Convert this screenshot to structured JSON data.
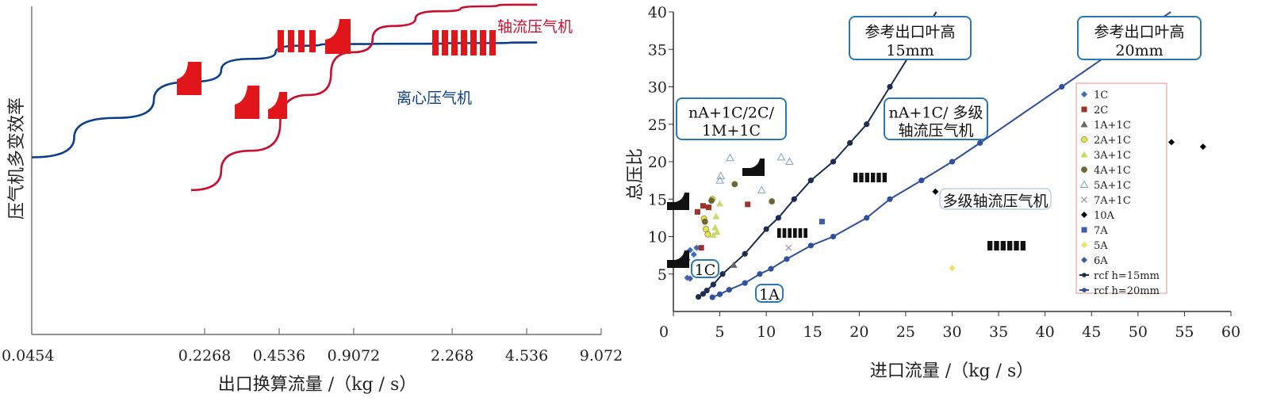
{
  "chart_data": [
    {
      "type": "line",
      "title": "",
      "xlabel": "出口换算流量 /（kg / s）",
      "ylabel": "压气机多变效率",
      "x_scale": "log",
      "x_ticks": [
        "0.0454",
        "0.2268",
        "0.4536",
        "0.9072",
        "2.268",
        "4.536",
        "9.072"
      ],
      "xlim": [
        0.0454,
        9.072
      ],
      "series": [
        {
          "name": "离心压气机",
          "color": "#0b3f8c",
          "x": [
            0.0454,
            0.1,
            0.2,
            0.35,
            0.55,
            0.8,
            1.5,
            3.0,
            5.0
          ],
          "y": [
            0.54,
            0.66,
            0.77,
            0.84,
            0.88,
            0.885,
            0.886,
            0.888,
            0.89
          ]
        },
        {
          "name": "轴流压气机",
          "color": "#c8102e",
          "x": [
            0.2,
            0.35,
            0.6,
            0.9,
            1.3,
            2.0,
            3.0,
            4.0,
            5.0
          ],
          "y": [
            0.44,
            0.56,
            0.73,
            0.86,
            0.94,
            0.985,
            1.0,
            1.005,
            1.005
          ]
        }
      ],
      "annotations": [
        "轴流压气机",
        "离心压气机"
      ]
    },
    {
      "type": "scatter",
      "title": "",
      "xlabel": "进口流量 /（kg / s）",
      "ylabel": "总压比",
      "xlim": [
        0,
        60
      ],
      "ylim": [
        0,
        40
      ],
      "x_ticks": [
        0,
        5,
        10,
        15,
        20,
        25,
        30,
        35,
        40,
        45,
        50,
        55,
        60
      ],
      "y_ticks": [
        5,
        10,
        15,
        20,
        25,
        30,
        35,
        40
      ],
      "series": [
        {
          "name": "1C",
          "marker": "diamond",
          "color": "#3a6bbf",
          "points": [
            [
              1.5,
              6.9
            ],
            [
              1.8,
              8.2
            ],
            [
              2.2,
              7.6
            ],
            [
              1.5,
              4.5
            ],
            [
              2.5,
              8.5
            ]
          ]
        },
        {
          "name": "2C",
          "marker": "square",
          "color": "#a0302a",
          "points": [
            [
              2.6,
              13.3
            ],
            [
              3.2,
              14.1
            ],
            [
              3.8,
              13.9
            ],
            [
              3.0,
              8.5
            ],
            [
              8.0,
              14.3
            ]
          ]
        },
        {
          "name": "1A+1C",
          "marker": "triangle",
          "color": "#666666",
          "points": [
            [
              4.5,
              6.0
            ],
            [
              6.5,
              6.2
            ]
          ]
        },
        {
          "name": "2A+1C",
          "marker": "circle",
          "color": "#e8e34a",
          "points": [
            [
              4.2,
              15.0
            ],
            [
              3.5,
              11.0
            ],
            [
              3.3,
              12.4
            ],
            [
              3.7,
              10.3
            ]
          ]
        },
        {
          "name": "3A+1C",
          "marker": "triangle",
          "color": "#c8d86a",
          "points": [
            [
              5.0,
              14.4
            ],
            [
              4.6,
              12.7
            ],
            [
              4.5,
              11.2
            ],
            [
              4.7,
              10.6
            ],
            [
              4.3,
              10.2
            ]
          ]
        },
        {
          "name": "4A+1C",
          "marker": "circle",
          "color": "#6e6633",
          "points": [
            [
              6.6,
              17.0
            ],
            [
              3.4,
              12.0
            ],
            [
              4.1,
              14.8
            ],
            [
              10.6,
              14.7
            ]
          ]
        },
        {
          "name": "5A+1C",
          "marker": "triangle-open",
          "color": "#7fa3cf",
          "points": [
            [
              5.0,
              17.5
            ],
            [
              5.1,
              18.1
            ],
            [
              6.1,
              20.5
            ],
            [
              11.6,
              20.6
            ],
            [
              12.5,
              20.0
            ],
            [
              9.5,
              16.2
            ]
          ]
        },
        {
          "name": "7A+1C",
          "marker": "x",
          "color": "#b08da5",
          "points": [
            [
              12.4,
              8.5
            ]
          ]
        },
        {
          "name": "10A",
          "marker": "diamond",
          "color": "#000000",
          "points": [
            [
              53.6,
              22.6
            ],
            [
              57.0,
              22.0
            ],
            [
              28.2,
              16.0
            ]
          ]
        },
        {
          "name": "7A",
          "marker": "square",
          "color": "#3a5fb0",
          "points": [
            [
              16.0,
              12.0
            ]
          ]
        },
        {
          "name": "5A",
          "marker": "diamond",
          "color": "#f0e060",
          "points": [
            [
              30.0,
              5.8
            ]
          ]
        },
        {
          "name": "6A",
          "marker": "diamond",
          "color": "#4a5aa8",
          "points": [
            [
              1.8,
              4.4
            ]
          ]
        },
        {
          "name": "rcf h=15mm",
          "marker": "line-dot",
          "color": "#1c2d52",
          "x": [
            2.7,
            3.2,
            3.6,
            4.3,
            5.3,
            7.7,
            10.0,
            11.3,
            13.0,
            14.8,
            17.2,
            19.0,
            20.8,
            23.3
          ],
          "y": [
            1.95,
            2.35,
            2.8,
            3.6,
            5.0,
            7.7,
            11.0,
            12.5,
            15.0,
            17.5,
            20.0,
            22.5,
            25.0,
            30.0
          ]
        },
        {
          "name": "rcf h=20mm",
          "marker": "line-dot",
          "color": "#2f4f9f",
          "x": [
            4.2,
            5.0,
            6.0,
            7.7,
            9.3,
            10.5,
            12.2,
            14.8,
            17.2,
            20.8,
            23.3,
            26.7,
            30.0,
            33.0,
            41.8
          ],
          "y": [
            1.9,
            2.3,
            2.9,
            3.8,
            5.0,
            5.7,
            7.0,
            8.8,
            10.0,
            12.5,
            15.0,
            17.5,
            20.0,
            22.5,
            30.0
          ]
        }
      ],
      "legend_position": "right",
      "annotations": [
        {
          "text_lines": [
            "参考出口叶高",
            "15mm"
          ],
          "style": "rounded-box"
        },
        {
          "text_lines": [
            "参考出口叶高",
            "20mm"
          ],
          "style": "rounded-box"
        },
        {
          "text_lines": [
            "nA+1C/2C/",
            "1M+1C"
          ],
          "style": "rounded-box"
        },
        {
          "text_lines": [
            "nA+1C/ 多级",
            "轴流压气机"
          ],
          "style": "rounded-box"
        },
        {
          "text_lines": [
            "多级轴流压气机"
          ],
          "style": "rounded-box"
        },
        {
          "text_lines": [
            "1C"
          ],
          "style": "rounded-box"
        },
        {
          "text_lines": [
            "1A"
          ],
          "style": "rounded-box"
        }
      ]
    }
  ]
}
